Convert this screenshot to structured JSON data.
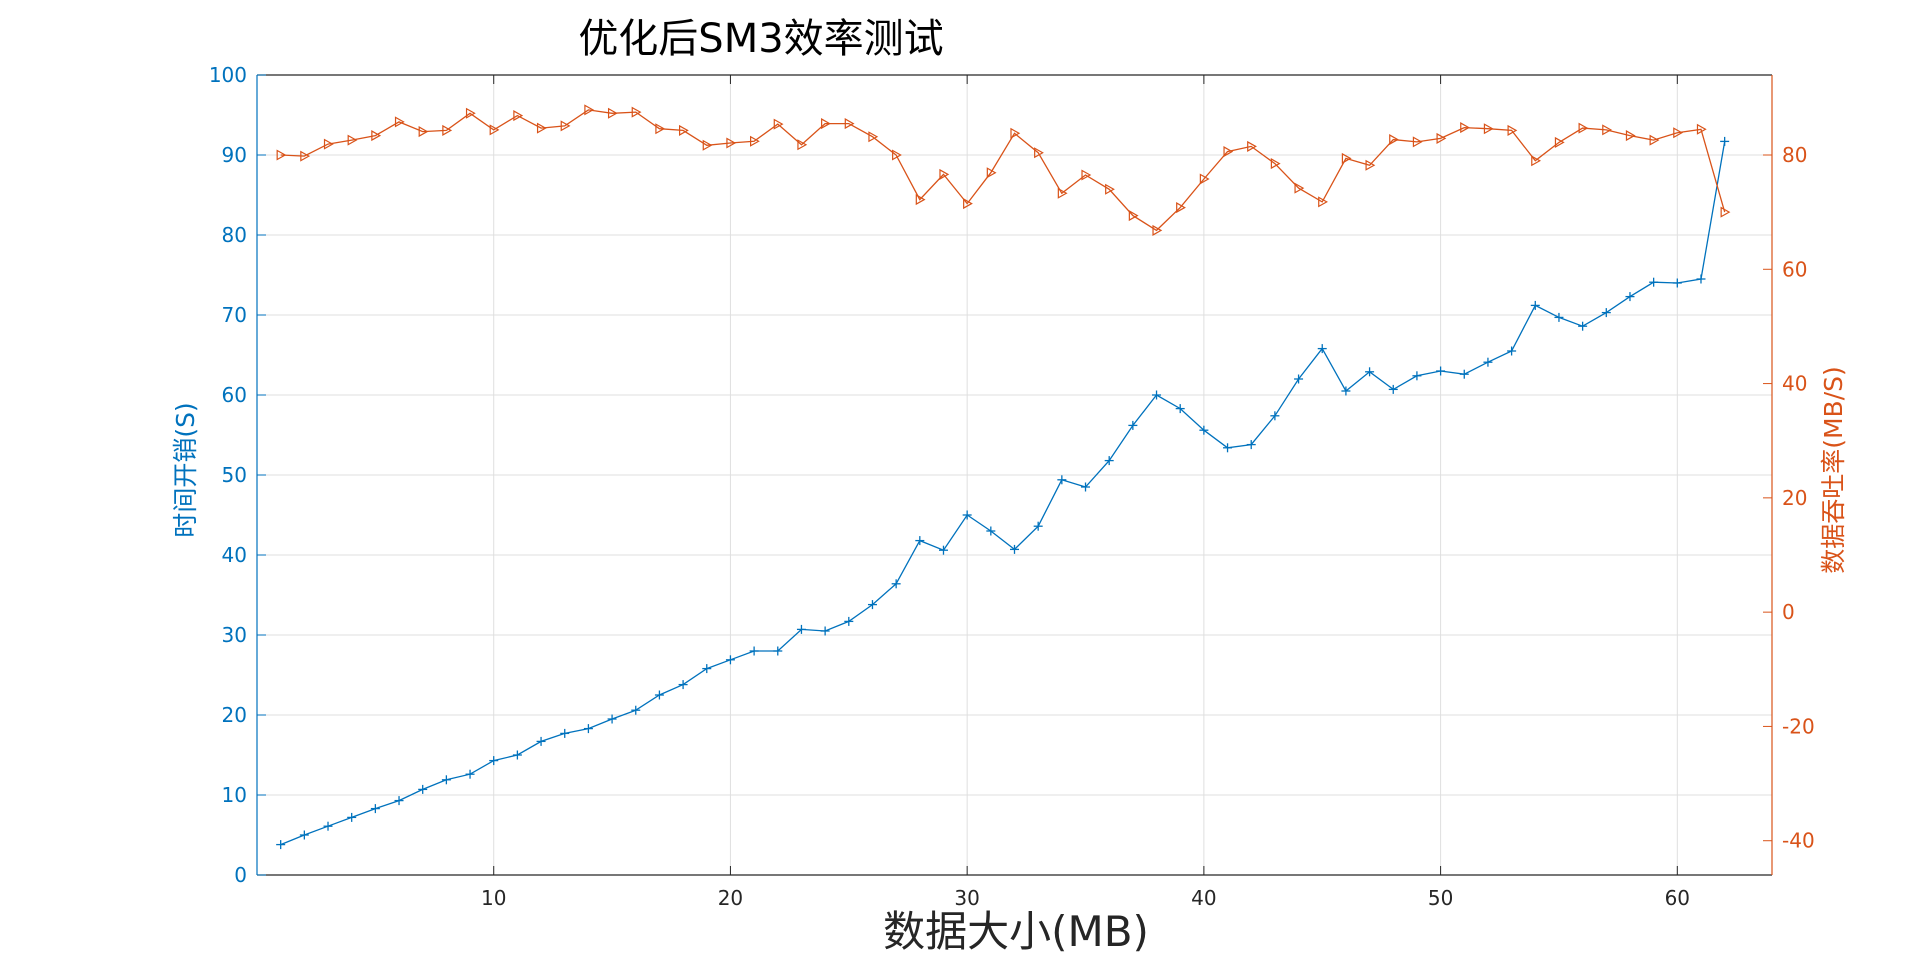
{
  "chart_data": {
    "type": "line",
    "title": "优化后SM3效率测试",
    "xlabel": "数据大小(MB)",
    "ylabel_left": "时间开销(S)",
    "ylabel_right": "数据吞吐率(MB/S)",
    "xlim": [
      0,
      64
    ],
    "ylim_left": [
      0,
      100
    ],
    "ylim_right": [
      -46,
      94
    ],
    "xticks": [
      10,
      20,
      30,
      40,
      50,
      60
    ],
    "yticks_left": [
      0,
      10,
      20,
      30,
      40,
      50,
      60,
      70,
      80,
      90,
      100
    ],
    "yticks_right": [
      -40,
      -20,
      0,
      20,
      40,
      60,
      80
    ],
    "grid": true,
    "colors": {
      "left": "#0072BD",
      "right": "#D95319",
      "grid": "#dfdfdf",
      "axis": "#262626"
    },
    "x": [
      1,
      2,
      3,
      4,
      5,
      6,
      7,
      8,
      9,
      10,
      11,
      12,
      13,
      14,
      15,
      16,
      17,
      18,
      19,
      20,
      21,
      22,
      23,
      24,
      25,
      26,
      27,
      28,
      29,
      30,
      31,
      32,
      33,
      34,
      35,
      36,
      37,
      38,
      39,
      40,
      41,
      42,
      43,
      44,
      45,
      46,
      47,
      48,
      49,
      50,
      51,
      52,
      53,
      54,
      55,
      56,
      57,
      58,
      59,
      60,
      61,
      62
    ],
    "series": [
      {
        "axis": "left",
        "marker": "+",
        "color": "#0072BD",
        "values": [
          3.8,
          5.0,
          6.1,
          7.2,
          8.3,
          9.3,
          10.7,
          11.9,
          12.6,
          14.3,
          15.0,
          16.7,
          17.7,
          18.3,
          19.5,
          20.6,
          22.5,
          23.8,
          25.8,
          26.9,
          28.0,
          28.0,
          30.7,
          30.5,
          31.7,
          33.8,
          36.4,
          41.8,
          40.6,
          45.0,
          43.0,
          40.7,
          43.6,
          49.4,
          48.5,
          51.8,
          56.2,
          60.0,
          58.3,
          55.6,
          53.4,
          53.8,
          57.4,
          62.0,
          65.8,
          60.5,
          62.9,
          60.7,
          62.4,
          63.0,
          62.6,
          64.1,
          65.5,
          71.2,
          69.7,
          68.6,
          70.3,
          72.3,
          74.1,
          74.0,
          74.5,
          91.7
        ]
      },
      {
        "axis": "right",
        "marker": ">",
        "color": "#D95319",
        "values": [
          80.0,
          79.8,
          81.9,
          82.6,
          83.4,
          85.8,
          84.1,
          84.3,
          87.3,
          84.4,
          86.9,
          84.7,
          85.1,
          87.9,
          87.3,
          87.5,
          84.6,
          84.3,
          81.7,
          82.1,
          82.4,
          85.4,
          81.8,
          85.5,
          85.5,
          83.2,
          80.0,
          72.2,
          76.6,
          71.5,
          76.9,
          83.8,
          80.4,
          73.3,
          76.5,
          74.0,
          69.4,
          66.8,
          70.8,
          75.8,
          80.6,
          81.5,
          78.5,
          74.2,
          71.8,
          79.4,
          78.2,
          82.7,
          82.3,
          82.9,
          84.8,
          84.6,
          84.3,
          79.0,
          82.2,
          84.7,
          84.4,
          83.4,
          82.6,
          83.9,
          84.5,
          70.0
        ]
      }
    ]
  }
}
